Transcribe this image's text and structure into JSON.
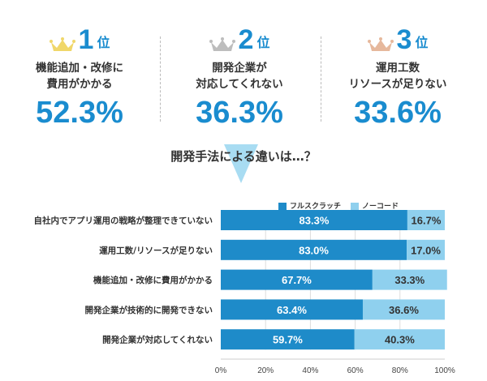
{
  "ranking": [
    {
      "rank": "1",
      "suffix": "位",
      "crown": "gold-crown",
      "crown_color": "#f0d76a",
      "lines": [
        "機能追加・改修に",
        "費用がかかる"
      ],
      "value": "52.3%"
    },
    {
      "rank": "2",
      "suffix": "位",
      "crown": "silver-crown",
      "crown_color": "#bdbdbd",
      "lines": [
        "開発企業が",
        "対応してくれない"
      ],
      "value": "36.3%"
    },
    {
      "rank": "3",
      "suffix": "位",
      "crown": "bronze-crown",
      "crown_color": "#e6b89c",
      "lines": [
        "運用工数",
        "リソースが足りない"
      ],
      "value": "33.6%"
    }
  ],
  "subtitle": "開発手法による違いは…？",
  "chart_data": {
    "type": "bar",
    "orientation": "horizontal-stacked-100",
    "categories": [
      "自社内でアプリ運用の戦略が整理できていない",
      "運用工数/リソースが足りない",
      "機能追加・改修に費用がかかる",
      "開発企業が技術的に開発できない",
      "開発企業が対応してくれない"
    ],
    "series": [
      {
        "name": "フルスクラッチ",
        "color": "#1e8bc9",
        "values": [
          83.3,
          83.0,
          67.7,
          63.4,
          59.7
        ],
        "labels": [
          "83.3%",
          "83.0%",
          "67.7%",
          "63.4%",
          "59.7%"
        ]
      },
      {
        "name": "ノーコード",
        "color": "#8fd0ee",
        "values": [
          16.7,
          17.0,
          33.3,
          36.6,
          40.3
        ],
        "labels": [
          "16.7%",
          "17.0%",
          "33.3%",
          "36.6%",
          "40.3%"
        ]
      }
    ],
    "xlim": [
      0,
      100
    ],
    "xticks": [
      "0%",
      "20%",
      "40%",
      "60%",
      "80%",
      "100%"
    ],
    "grid": true,
    "legend": "top"
  }
}
